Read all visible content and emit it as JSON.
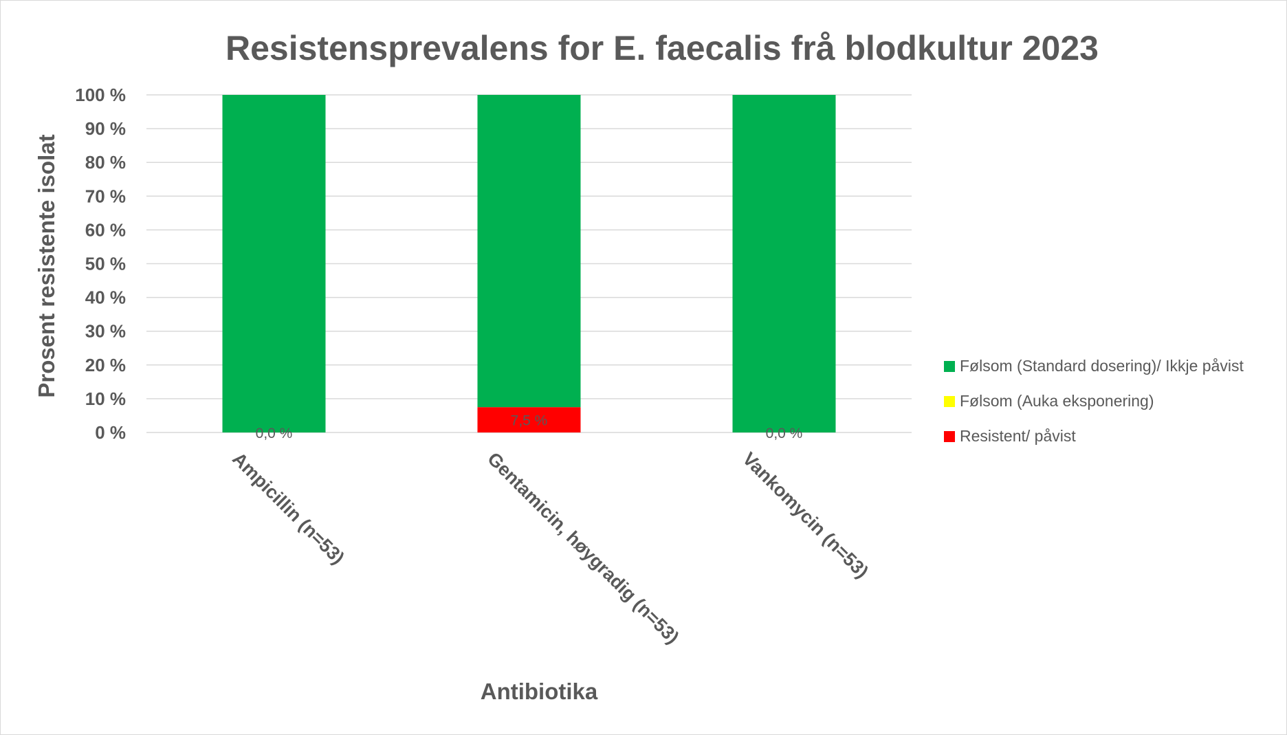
{
  "chart_data": {
    "type": "bar",
    "stacked": true,
    "title": "Resistensprevalens for E. faecalis frå blodkultur 2023",
    "xlabel": "Antibiotika",
    "ylabel": "Prosent resistente isolat",
    "ylim": [
      0,
      100
    ],
    "yticks": [
      "0 %",
      "10 %",
      "20 %",
      "30 %",
      "40 %",
      "50 %",
      "60 %",
      "70 %",
      "80 %",
      "90 %",
      "100 %"
    ],
    "grid": true,
    "legend_position": "right",
    "categories": [
      "Ampicillin (n=53)",
      "Gentamicin, høygradig (n=53)",
      "Vankomycin (n=53)"
    ],
    "series": [
      {
        "name": "Resistent/ påvist",
        "color": "#ff0000",
        "values": [
          0.0,
          7.5,
          0.0
        ],
        "labels": [
          "0,0 %",
          "7,5 %",
          "0,0 %"
        ]
      },
      {
        "name": "Følsom (Auka eksponering)",
        "color": "#ffff00",
        "values": [
          0.0,
          0.0,
          0.0
        ]
      },
      {
        "name": "Følsom (Standard dosering)/ Ikkje påvist",
        "color": "#00b050",
        "values": [
          100.0,
          92.5,
          100.0
        ]
      }
    ],
    "legend_order": [
      "Følsom (Standard dosering)/ Ikkje påvist",
      "Følsom (Auka eksponering)",
      "Resistent/ påvist"
    ]
  }
}
